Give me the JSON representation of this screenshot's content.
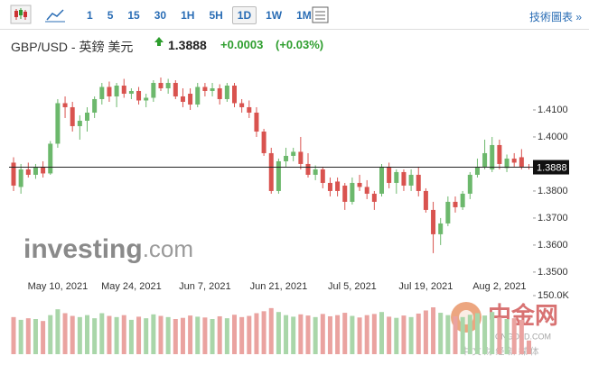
{
  "toolbar": {
    "intervals": [
      "1",
      "5",
      "15",
      "30",
      "1H",
      "5H",
      "1D",
      "1W",
      "1M"
    ],
    "selected": "1D",
    "link": "技術圖表 »"
  },
  "header": {
    "title": "GBP/USD - 英鎊 美元",
    "price": 1.3888,
    "change": "+0.0003",
    "change_percent": "(+0.03%)"
  },
  "watermark": {
    "brand": "investing",
    "suffix": ".com"
  },
  "logo": {
    "name": "中金网",
    "site": "CNGOLD.COM",
    "slogan": "中 文 财 经 新 媒 体"
  },
  "chart_data": {
    "type": "candlestick",
    "categories": [
      null,
      null,
      null,
      null,
      null,
      null,
      "May 10, 2021",
      null,
      null,
      null,
      null,
      null,
      null,
      null,
      null,
      null,
      "May 24, 2021",
      null,
      null,
      null,
      null,
      null,
      null,
      null,
      null,
      null,
      "Jun 7, 2021",
      null,
      null,
      null,
      null,
      null,
      null,
      null,
      null,
      null,
      "Jun 21, 2021",
      null,
      null,
      null,
      null,
      null,
      null,
      null,
      null,
      null,
      "Jul 5, 2021",
      null,
      null,
      null,
      null,
      null,
      null,
      null,
      null,
      null,
      "Jul 19, 2021",
      null,
      null,
      null,
      null,
      null,
      null,
      null,
      null,
      null,
      "Aug 2, 2021",
      null,
      null,
      null,
      null
    ],
    "open": [
      1.3905,
      1.3815,
      1.388,
      1.386,
      1.389,
      1.3865,
      1.3975,
      1.4125,
      1.411,
      1.404,
      1.406,
      1.409,
      1.414,
      1.4185,
      1.415,
      1.419,
      1.416,
      1.417,
      1.4135,
      1.4145,
      1.42,
      1.418,
      1.42,
      1.415,
      1.416,
      1.412,
      1.4185,
      1.417,
      1.418,
      1.414,
      1.419,
      1.4125,
      1.411,
      1.409,
      1.402,
      1.394,
      1.38,
      1.391,
      1.393,
      1.3945,
      1.39,
      1.386,
      1.388,
      1.383,
      1.3835,
      1.382,
      1.376,
      1.383,
      1.3815,
      1.379,
      1.379,
      1.389,
      1.383,
      1.387,
      1.382,
      1.386,
      1.38,
      1.373,
      1.364,
      1.368,
      1.376,
      1.374,
      1.379,
      1.386,
      1.389,
      1.388,
      1.397,
      1.3885,
      1.392,
      1.3925,
      1.389
    ],
    "high": [
      1.3925,
      1.39,
      1.3905,
      1.39,
      1.391,
      1.3985,
      1.414,
      1.415,
      1.413,
      1.408,
      1.411,
      1.415,
      1.42,
      1.4205,
      1.42,
      1.4215,
      1.418,
      1.4185,
      1.416,
      1.421,
      1.422,
      1.4215,
      1.421,
      1.418,
      1.418,
      1.42,
      1.42,
      1.42,
      1.4195,
      1.42,
      1.42,
      1.414,
      1.4135,
      1.411,
      1.403,
      1.396,
      1.392,
      1.396,
      1.396,
      1.4,
      1.394,
      1.3895,
      1.389,
      1.385,
      1.385,
      1.383,
      1.385,
      1.386,
      1.384,
      1.38,
      1.39,
      1.3905,
      1.388,
      1.388,
      1.388,
      1.389,
      1.381,
      1.376,
      1.37,
      1.378,
      1.378,
      1.38,
      1.387,
      1.392,
      1.399,
      1.4,
      1.399,
      1.3935,
      1.394,
      1.3955,
      1.39
    ],
    "low": [
      1.38,
      1.379,
      1.385,
      1.3845,
      1.385,
      1.386,
      1.396,
      1.407,
      1.402,
      1.399,
      1.402,
      1.407,
      1.412,
      1.413,
      1.411,
      1.4145,
      1.414,
      1.412,
      1.411,
      1.413,
      1.417,
      1.416,
      1.414,
      1.411,
      1.41,
      1.411,
      1.415,
      1.415,
      1.412,
      1.413,
      1.411,
      1.409,
      1.407,
      1.4,
      1.393,
      1.379,
      1.379,
      1.389,
      1.391,
      1.388,
      1.385,
      1.384,
      1.381,
      1.378,
      1.378,
      1.373,
      1.375,
      1.38,
      1.377,
      1.373,
      1.378,
      1.381,
      1.379,
      1.38,
      1.38,
      1.378,
      1.372,
      1.357,
      1.36,
      1.367,
      1.372,
      1.373,
      1.377,
      1.385,
      1.388,
      1.387,
      1.388,
      1.387,
      1.389,
      1.388,
      1.388
    ],
    "close": [
      1.382,
      1.388,
      1.386,
      1.389,
      1.3865,
      1.3975,
      1.4125,
      1.411,
      1.404,
      1.406,
      1.409,
      1.414,
      1.4185,
      1.415,
      1.419,
      1.416,
      1.417,
      1.4135,
      1.4145,
      1.42,
      1.418,
      1.42,
      1.415,
      1.413,
      1.412,
      1.4185,
      1.417,
      1.418,
      1.414,
      1.419,
      1.4125,
      1.411,
      1.409,
      1.402,
      1.394,
      1.38,
      1.391,
      1.393,
      1.3945,
      1.39,
      1.386,
      1.388,
      1.383,
      1.38,
      1.38,
      1.376,
      1.383,
      1.3815,
      1.379,
      1.376,
      1.389,
      1.383,
      1.387,
      1.382,
      1.386,
      1.38,
      1.373,
      1.364,
      1.368,
      1.376,
      1.374,
      1.379,
      1.386,
      1.389,
      1.394,
      1.397,
      1.39,
      1.392,
      1.3905,
      1.389,
      1.3888
    ],
    "up_color": "#6cb86c",
    "down_color": "#d9534f",
    "ylim": [
      1.3473,
      1.429
    ],
    "yticks": [
      {
        "value": 1.35,
        "label": "1.3500"
      },
      {
        "value": 1.36,
        "label": "1.3600"
      },
      {
        "value": 1.37,
        "label": "1.3700"
      },
      {
        "value": 1.38,
        "label": "1.3800"
      },
      {
        "value": 1.4,
        "label": "1.4000"
      },
      {
        "value": 1.41,
        "label": "1.4100"
      }
    ],
    "last_price": 1.3888,
    "volume": {
      "values": [
        95000,
        88000,
        92000,
        90000,
        85000,
        100000,
        115000,
        105000,
        98000,
        95000,
        100000,
        92000,
        105000,
        98000,
        95000,
        100000,
        88000,
        96000,
        92000,
        102000,
        98000,
        95000,
        90000,
        93000,
        99000,
        96000,
        94000,
        90000,
        97000,
        92000,
        101000,
        95000,
        98000,
        105000,
        110000,
        118000,
        108000,
        100000,
        96000,
        102000,
        99000,
        95000,
        103000,
        97000,
        100000,
        106000,
        98000,
        94000,
        100000,
        103000,
        108000,
        96000,
        93000,
        99000,
        95000,
        104000,
        112000,
        120000,
        106000,
        100000,
        97000,
        95000,
        101000,
        105000,
        99000,
        108000,
        94000,
        90000,
        92000,
        88000,
        35000
      ],
      "up_color": "#a9d6a9",
      "down_color": "#eaa3a0",
      "ylim": [
        0,
        150000
      ],
      "yticks": [
        {
          "value": 150000,
          "label": "150.0K"
        }
      ]
    }
  }
}
